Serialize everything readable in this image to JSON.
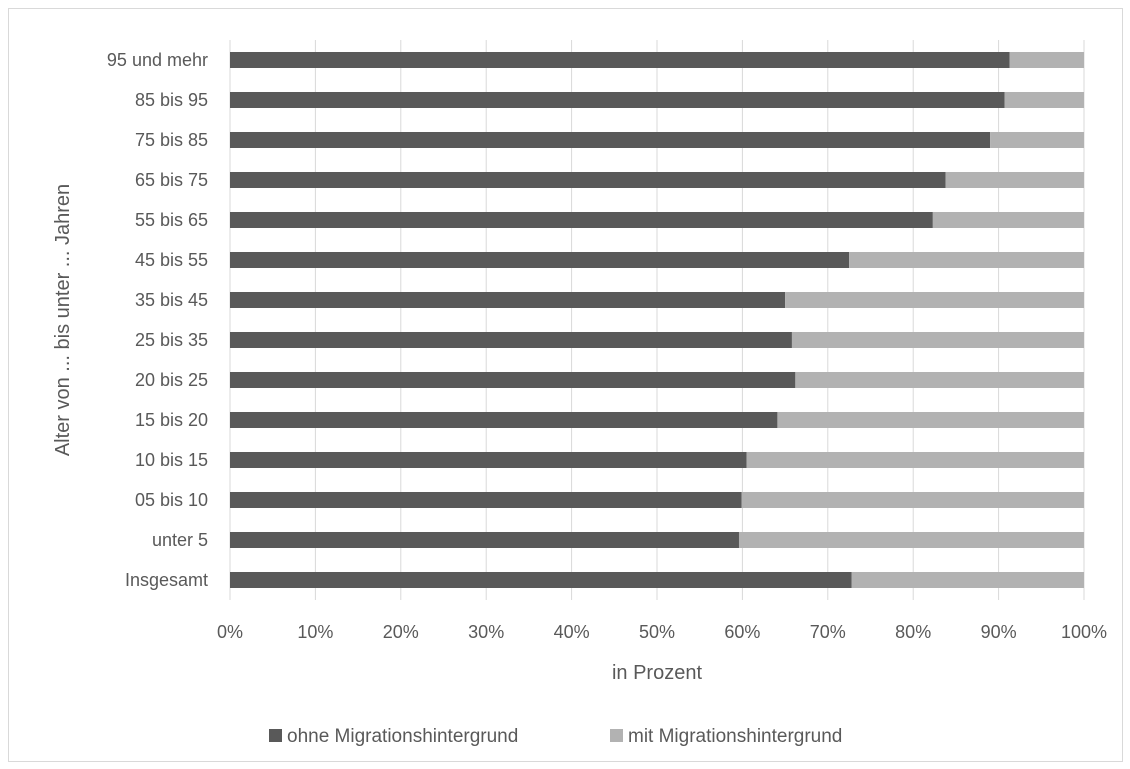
{
  "chart_data": {
    "type": "bar",
    "orientation": "horizontal",
    "stacked": true,
    "title": "",
    "xlabel": "in Prozent",
    "ylabel": "Alter von ... bis unter ... Jahren",
    "xlim": [
      0,
      100
    ],
    "x_ticks": [
      "0%",
      "10%",
      "20%",
      "30%",
      "40%",
      "50%",
      "60%",
      "70%",
      "80%",
      "90%",
      "100%"
    ],
    "grid": "vertical",
    "legend_position": "bottom",
    "categories": [
      "95 und mehr",
      "85 bis 95",
      "75 bis 85",
      "65 bis 75",
      "55 bis 65",
      "45 bis 55",
      "35 bis 45",
      "25 bis 35",
      "20 bis 25",
      "15 bis 20",
      "10 bis 15",
      "05 bis 10",
      "unter 5",
      "Insgesamt"
    ],
    "series": [
      {
        "name": "ohne Migrationshintergrund",
        "color": "#595959",
        "values": [
          91.3,
          90.7,
          89.0,
          83.8,
          82.3,
          72.5,
          65.0,
          65.8,
          66.2,
          64.1,
          60.5,
          59.9,
          59.6,
          72.8
        ]
      },
      {
        "name": "mit Migrationshintergrund",
        "color": "#b2b2b2",
        "values": [
          8.7,
          9.3,
          11.0,
          16.2,
          17.7,
          27.5,
          35.0,
          34.2,
          33.8,
          35.9,
          39.5,
          40.1,
          40.4,
          27.2
        ]
      }
    ]
  }
}
